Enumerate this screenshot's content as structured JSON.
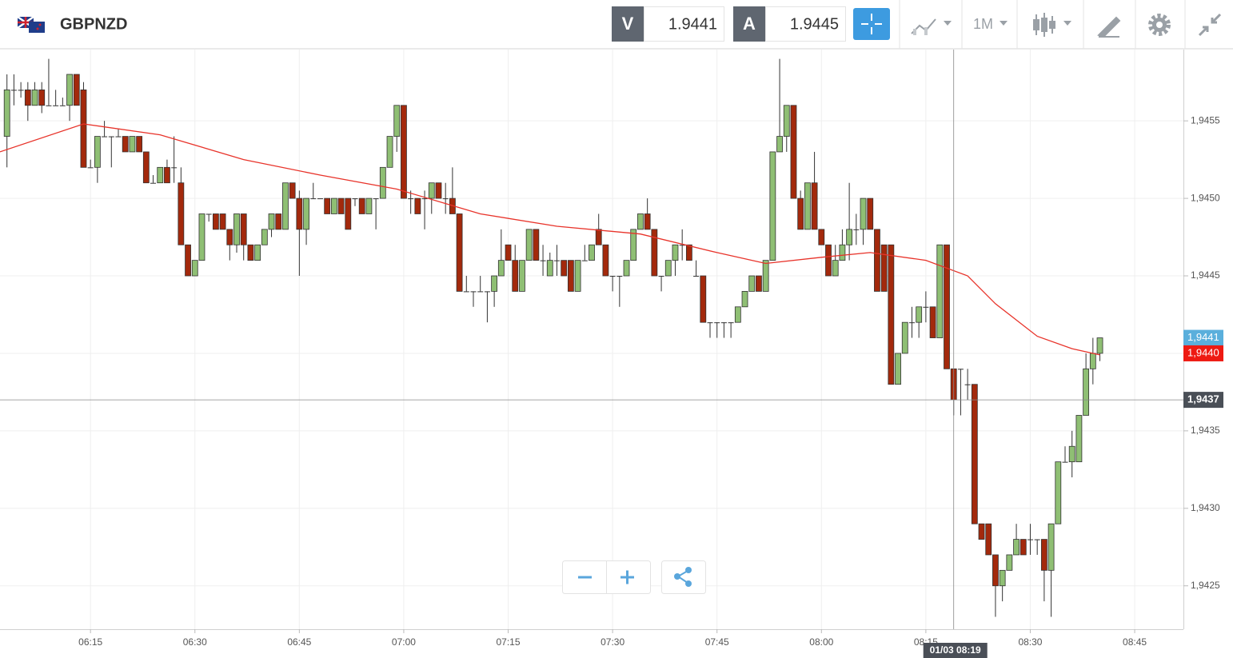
{
  "toolbar": {
    "symbol": "GBPNZD",
    "bid_label": "V",
    "bid": 1.9441,
    "ask_label": "A",
    "ask": 1.9445,
    "timeframe": "1M"
  },
  "chart_data": {
    "type": "candlestick",
    "up_color": "#8fbf74",
    "down_color": "#a3290c",
    "x": [
      "06:03",
      "06:04",
      "06:05",
      "06:06",
      "06:07",
      "06:08",
      "06:09",
      "06:10",
      "06:11",
      "06:12",
      "06:13",
      "06:14",
      "06:15",
      "06:16",
      "06:17",
      "06:18",
      "06:19",
      "06:20",
      "06:21",
      "06:22",
      "06:23",
      "06:24",
      "06:25",
      "06:26",
      "06:27",
      "06:28",
      "06:29",
      "06:30",
      "06:31",
      "06:32",
      "06:33",
      "06:34",
      "06:35",
      "06:36",
      "06:37",
      "06:38",
      "06:39",
      "06:40",
      "06:41",
      "06:42",
      "06:43",
      "06:44",
      "06:45",
      "06:46",
      "06:47",
      "06:48",
      "06:49",
      "06:50",
      "06:51",
      "06:52",
      "06:53",
      "06:54",
      "06:55",
      "06:56",
      "06:57",
      "06:58",
      "06:59",
      "07:00",
      "07:01",
      "07:02",
      "07:03",
      "07:04",
      "07:05",
      "07:06",
      "07:07",
      "07:08",
      "07:09",
      "07:10",
      "07:11",
      "07:12",
      "07:13",
      "07:14",
      "07:15",
      "07:16",
      "07:17",
      "07:18",
      "07:19",
      "07:20",
      "07:21",
      "07:22",
      "07:23",
      "07:24",
      "07:25",
      "07:26",
      "07:27",
      "07:28",
      "07:29",
      "07:30",
      "07:31",
      "07:32",
      "07:33",
      "07:34",
      "07:35",
      "07:36",
      "07:37",
      "07:38",
      "07:39",
      "07:40",
      "07:41",
      "07:42",
      "07:43",
      "07:44",
      "07:45",
      "07:46",
      "07:47",
      "07:48",
      "07:49",
      "07:50",
      "07:51",
      "07:52",
      "07:53",
      "07:54",
      "07:55",
      "07:56",
      "07:57",
      "07:58",
      "07:59",
      "08:00",
      "08:01",
      "08:02",
      "08:03",
      "08:04",
      "08:05",
      "08:06",
      "08:07",
      "08:08",
      "08:09",
      "08:10",
      "08:11",
      "08:12",
      "08:13",
      "08:14",
      "08:15",
      "08:16",
      "08:17",
      "08:18",
      "08:19",
      "08:20",
      "08:21",
      "08:22",
      "08:23",
      "08:24",
      "08:25",
      "08:26",
      "08:27",
      "08:28",
      "08:29",
      "08:30",
      "08:31",
      "08:32",
      "08:33",
      "08:34",
      "08:35",
      "08:36",
      "08:37",
      "08:38",
      "08:39",
      "08:40"
    ],
    "open": [
      1.9454,
      1.9457,
      1.9457,
      1.9457,
      1.9456,
      1.9457,
      1.9456,
      1.9456,
      1.9456,
      1.9456,
      1.9458,
      1.9457,
      1.9452,
      1.9452,
      1.9454,
      1.9454,
      1.9454,
      1.9454,
      1.9453,
      1.9454,
      1.9453,
      1.9451,
      1.9451,
      1.9452,
      1.9452,
      1.9451,
      1.9447,
      1.9445,
      1.9446,
      1.9449,
      1.9449,
      1.9449,
      1.9448,
      1.9447,
      1.9449,
      1.9447,
      1.9446,
      1.9447,
      1.9448,
      1.9449,
      1.9448,
      1.9451,
      1.945,
      1.9448,
      1.945,
      1.945,
      1.945,
      1.9449,
      1.945,
      1.945,
      1.945,
      1.945,
      1.9449,
      1.945,
      1.945,
      1.9452,
      1.9454,
      1.9456,
      1.945,
      1.945,
      1.945,
      1.945,
      1.9451,
      1.945,
      1.945,
      1.9449,
      1.9444,
      1.9444,
      1.9444,
      1.9444,
      1.9444,
      1.9445,
      1.9447,
      1.9446,
      1.9444,
      1.9446,
      1.9448,
      1.9446,
      1.9445,
      1.9446,
      1.9446,
      1.9446,
      1.9444,
      1.9446,
      1.9446,
      1.9448,
      1.9447,
      1.9445,
      1.9445,
      1.9445,
      1.9446,
      1.9448,
      1.9449,
      1.9448,
      1.9445,
      1.9445,
      1.9446,
      1.9447,
      1.9447,
      1.9445,
      1.9445,
      1.9442,
      1.9442,
      1.9442,
      1.9442,
      1.9442,
      1.9443,
      1.9444,
      1.9445,
      1.9444,
      1.9446,
      1.9453,
      1.9454,
      1.9456,
      1.945,
      1.9448,
      1.9451,
      1.9448,
      1.9447,
      1.9445,
      1.9446,
      1.9447,
      1.9448,
      1.9448,
      1.945,
      1.9448,
      1.9447,
      1.9447,
      1.9438,
      1.944,
      1.9442,
      1.9442,
      1.9443,
      1.9443,
      1.9441,
      1.9447,
      1.9439,
      1.9439,
      1.9438,
      1.9438,
      1.9429,
      1.9429,
      1.9427,
      1.9425,
      1.9426,
      1.9427,
      1.9428,
      1.9428,
      1.9428,
      1.9428,
      1.9426,
      1.9429,
      1.9433,
      1.9433,
      1.9433,
      1.9436,
      1.9439,
      1.944
    ],
    "high": [
      1.9458,
      1.9458,
      1.94575,
      1.94575,
      1.94575,
      1.94575,
      1.9459,
      1.9457,
      1.94565,
      1.9458,
      1.9458,
      1.94575,
      1.94525,
      1.9454,
      1.9455,
      1.9454,
      1.94545,
      1.9454,
      1.9454,
      1.9454,
      1.9453,
      1.94515,
      1.9452,
      1.94525,
      1.9454,
      1.9452,
      1.9447,
      1.9446,
      1.9449,
      1.9449,
      1.9449,
      1.9449,
      1.9448,
      1.9449,
      1.9449,
      1.9447,
      1.9447,
      1.9448,
      1.9449,
      1.9449,
      1.9451,
      1.9451,
      1.94505,
      1.945,
      1.9451,
      1.945,
      1.945,
      1.945,
      1.945,
      1.945,
      1.945,
      1.945,
      1.945,
      1.945,
      1.9452,
      1.9454,
      1.9456,
      1.9456,
      1.94505,
      1.945,
      1.94505,
      1.9451,
      1.9451,
      1.9451,
      1.9452,
      1.9449,
      1.9445,
      1.9444,
      1.9445,
      1.9444,
      1.9445,
      1.9448,
      1.9447,
      1.9447,
      1.9446,
      1.9448,
      1.9448,
      1.9447,
      1.94465,
      1.9447,
      1.9446,
      1.9446,
      1.9446,
      1.9447,
      1.9447,
      1.9449,
      1.9447,
      1.9445,
      1.9445,
      1.9446,
      1.9448,
      1.9449,
      1.945,
      1.9448,
      1.9445,
      1.9446,
      1.9447,
      1.9448,
      1.9447,
      1.9446,
      1.9445,
      1.9442,
      1.9442,
      1.9442,
      1.9442,
      1.9443,
      1.9444,
      1.9445,
      1.9445,
      1.9446,
      1.9453,
      1.9459,
      1.9456,
      1.9456,
      1.94505,
      1.9451,
      1.9453,
      1.9448,
      1.9447,
      1.9447,
      1.9448,
      1.9451,
      1.9449,
      1.945,
      1.945,
      1.9448,
      1.9447,
      1.9447,
      1.944,
      1.9442,
      1.9443,
      1.9443,
      1.9444,
      1.9443,
      1.9447,
      1.9447,
      1.9439,
      1.9439,
      1.9439,
      1.9438,
      1.9429,
      1.9429,
      1.9427,
      1.9426,
      1.9427,
      1.9429,
      1.9428,
      1.9429,
      1.9428,
      1.9428,
      1.9429,
      1.9433,
      1.9434,
      1.9435,
      1.9436,
      1.944,
      1.9441,
      1.9441
    ],
    "low": [
      1.9452,
      1.9456,
      1.94565,
      1.9455,
      1.9456,
      1.94555,
      1.9456,
      1.9456,
      1.9456,
      1.9455,
      1.9456,
      1.9452,
      1.9452,
      1.9451,
      1.9454,
      1.9452,
      1.9454,
      1.9453,
      1.9453,
      1.9453,
      1.9451,
      1.9451,
      1.9451,
      1.9451,
      1.9451,
      1.9447,
      1.9445,
      1.9445,
      1.9446,
      1.94485,
      1.9448,
      1.9448,
      1.9446,
      1.94465,
      1.9446,
      1.9446,
      1.9446,
      1.9447,
      1.94475,
      1.9448,
      1.9448,
      1.945,
      1.9445,
      1.9447,
      1.945,
      1.945,
      1.9449,
      1.9449,
      1.9449,
      1.9448,
      1.94495,
      1.9449,
      1.9449,
      1.9448,
      1.945,
      1.9452,
      1.9453,
      1.945,
      1.9449,
      1.9449,
      1.9448,
      1.9449,
      1.945,
      1.9449,
      1.9449,
      1.9444,
      1.9444,
      1.9443,
      1.9444,
      1.9442,
      1.9443,
      1.9445,
      1.9446,
      1.9444,
      1.9444,
      1.9446,
      1.9446,
      1.9445,
      1.9445,
      1.9445,
      1.9445,
      1.9444,
      1.9444,
      1.9446,
      1.9446,
      1.9447,
      1.9445,
      1.9444,
      1.9443,
      1.9445,
      1.9446,
      1.9448,
      1.9448,
      1.9445,
      1.9444,
      1.9445,
      1.9445,
      1.9446,
      1.9446,
      1.9445,
      1.9442,
      1.9441,
      1.9441,
      1.9441,
      1.9441,
      1.9442,
      1.9443,
      1.9444,
      1.9444,
      1.9444,
      1.9446,
      1.9453,
      1.9453,
      1.945,
      1.9448,
      1.9448,
      1.9448,
      1.9447,
      1.9445,
      1.9445,
      1.9446,
      1.9446,
      1.9447,
      1.9447,
      1.9448,
      1.9444,
      1.9444,
      1.9438,
      1.9438,
      1.944,
      1.9441,
      1.9441,
      1.9442,
      1.9441,
      1.9441,
      1.9439,
      1.9436,
      1.9436,
      1.9437,
      1.9429,
      1.9428,
      1.9427,
      1.9423,
      1.9424,
      1.9426,
      1.9427,
      1.9427,
      1.9427,
      1.9427,
      1.9424,
      1.9423,
      1.9429,
      1.9433,
      1.9432,
      1.9433,
      1.9436,
      1.9438,
      1.94395
    ],
    "close": [
      1.9457,
      1.9457,
      1.9457,
      1.9456,
      1.9457,
      1.9456,
      1.9456,
      1.9456,
      1.9456,
      1.9458,
      1.9456,
      1.9452,
      1.9452,
      1.9454,
      1.9454,
      1.9454,
      1.9454,
      1.9453,
      1.9454,
      1.9453,
      1.9451,
      1.9451,
      1.9452,
      1.9451,
      1.9452,
      1.9447,
      1.9445,
      1.9446,
      1.9449,
      1.9449,
      1.9448,
      1.9448,
      1.9447,
      1.9449,
      1.9447,
      1.9446,
      1.9447,
      1.9448,
      1.9449,
      1.9448,
      1.9451,
      1.945,
      1.9448,
      1.945,
      1.945,
      1.945,
      1.9449,
      1.945,
      1.9449,
      1.9448,
      1.945,
      1.9449,
      1.945,
      1.945,
      1.9452,
      1.9454,
      1.9456,
      1.945,
      1.945,
      1.9449,
      1.945,
      1.9451,
      1.945,
      1.945,
      1.9449,
      1.9444,
      1.9444,
      1.9444,
      1.9444,
      1.9444,
      1.9445,
      1.9446,
      1.9446,
      1.9444,
      1.9446,
      1.9448,
      1.9446,
      1.9446,
      1.9446,
      1.9446,
      1.9445,
      1.9444,
      1.9446,
      1.9446,
      1.9447,
      1.9447,
      1.9445,
      1.9445,
      1.9445,
      1.9446,
      1.9448,
      1.9449,
      1.9448,
      1.9445,
      1.9445,
      1.9446,
      1.9447,
      1.9447,
      1.9446,
      1.9445,
      1.9442,
      1.9442,
      1.9442,
      1.9442,
      1.9442,
      1.9443,
      1.9444,
      1.9445,
      1.9444,
      1.9446,
      1.9453,
      1.9454,
      1.9456,
      1.945,
      1.9448,
      1.9451,
      1.9448,
      1.9447,
      1.9445,
      1.9446,
      1.9447,
      1.9448,
      1.9448,
      1.945,
      1.9448,
      1.9444,
      1.9444,
      1.9438,
      1.944,
      1.9442,
      1.9442,
      1.9443,
      1.9443,
      1.9441,
      1.9447,
      1.9439,
      1.9437,
      1.9439,
      1.9438,
      1.9429,
      1.9428,
      1.9427,
      1.9425,
      1.9426,
      1.9427,
      1.9428,
      1.9427,
      1.9428,
      1.9428,
      1.9426,
      1.9429,
      1.9433,
      1.9433,
      1.9434,
      1.9436,
      1.9439,
      1.944,
      1.9441
    ],
    "ma": {
      "color": "#e8332a",
      "x": [
        "06:02",
        "06:14",
        "06:25",
        "06:37",
        "06:48",
        "06:59",
        "07:11",
        "07:22",
        "07:34",
        "07:45",
        "07:52",
        "08:00",
        "08:07",
        "08:15",
        "08:21",
        "08:25",
        "08:31",
        "08:36",
        "08:40"
      ],
      "values": [
        1.9453,
        1.94548,
        1.94541,
        1.94525,
        1.94515,
        1.94506,
        1.9449,
        1.94482,
        1.94477,
        1.94465,
        1.94458,
        1.94462,
        1.94465,
        1.9446,
        1.9445,
        1.94432,
        1.94411,
        1.94403,
        1.94399
      ]
    },
    "xlim": [
      "06:02",
      "08:52"
    ],
    "xticks": [
      "06:15",
      "06:30",
      "06:45",
      "07:00",
      "07:15",
      "07:30",
      "07:45",
      "08:00",
      "08:15",
      "08:30",
      "08:45"
    ],
    "ylim": [
      1.94222,
      1.94596
    ],
    "yticks": [
      {
        "value": 1.9425,
        "label": "1,9425"
      },
      {
        "value": 1.943,
        "label": "1,9430"
      },
      {
        "value": 1.9435,
        "label": "1,9435"
      },
      {
        "value": 1.944,
        "label": "1,9440"
      },
      {
        "value": 1.9445,
        "label": "1,9445"
      },
      {
        "value": 1.945,
        "label": "1,9450"
      },
      {
        "value": 1.9455,
        "label": "1,9455"
      }
    ],
    "grid": true,
    "price_markers": [
      {
        "value": 1.9441,
        "label": "1,9441",
        "color": "#5aafdc"
      },
      {
        "value": 1.944,
        "label": "1,9440",
        "color": "#ee1a12"
      }
    ],
    "crosshair": {
      "x": "08:19",
      "y": 1.9437,
      "x_label": "01/03 08:19",
      "y_label": "1,9437"
    }
  }
}
